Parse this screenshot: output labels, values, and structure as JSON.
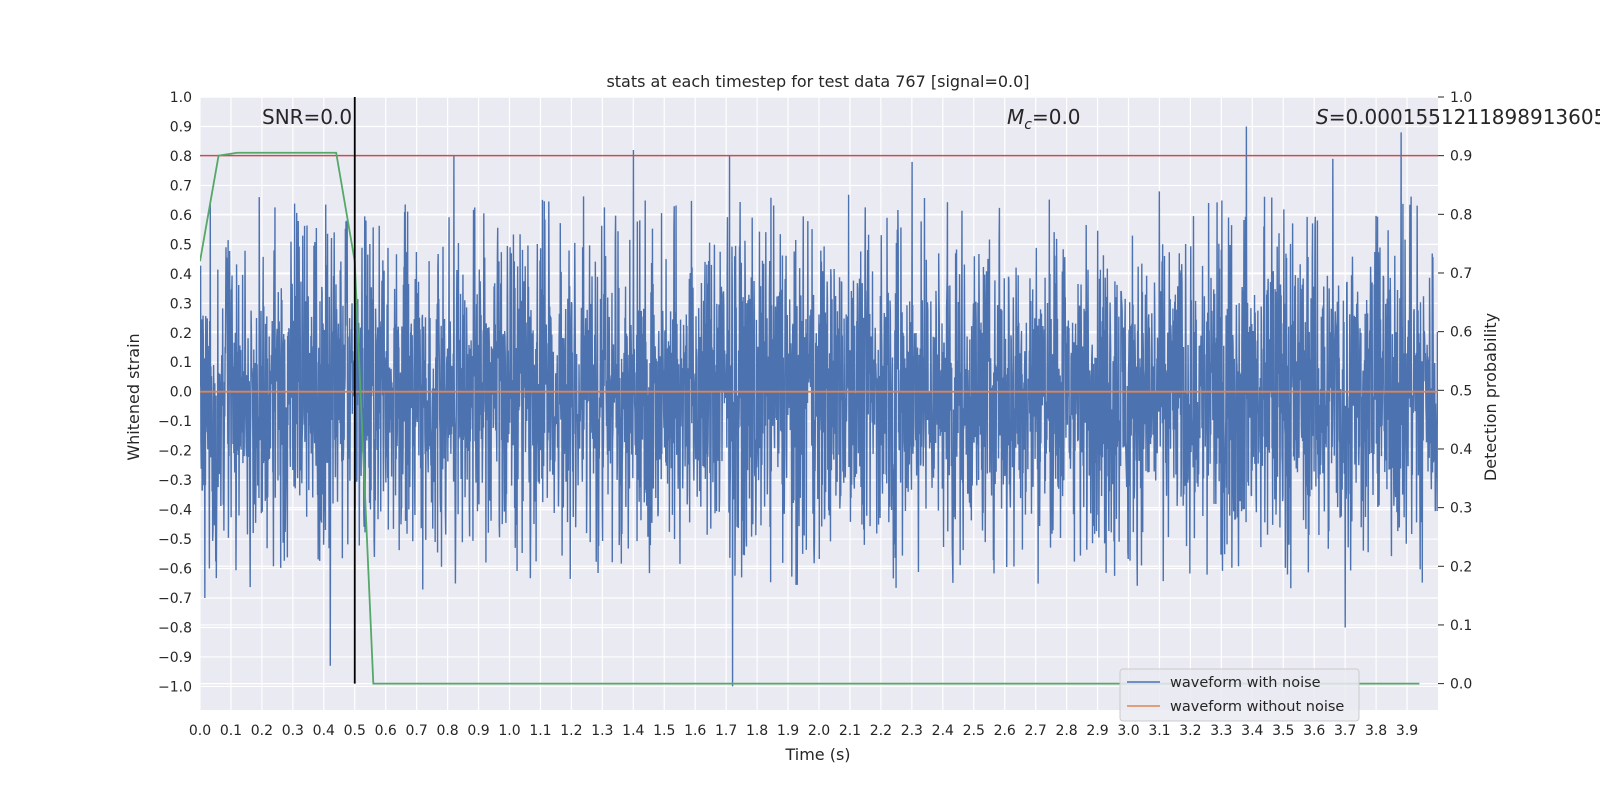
{
  "chart_data": {
    "type": "line",
    "title": "stats at each timestep for test data 767 [signal=0.0]",
    "xlabel": "Time (s)",
    "ylabel": "Whitened strain",
    "ylabel_right": "Detection probability",
    "xlim": [
      0.0,
      4.0
    ],
    "ylim": [
      -1.08,
      1.0
    ],
    "ylim_right": [
      -0.045,
      1.0
    ],
    "x_ticks": [
      0.0,
      0.1,
      0.2,
      0.3,
      0.4,
      0.5,
      0.6,
      0.7,
      0.8,
      0.9,
      1.0,
      1.1,
      1.2,
      1.3,
      1.4,
      1.5,
      1.6,
      1.7,
      1.8,
      1.9,
      2.0,
      2.1,
      2.2,
      2.3,
      2.4,
      2.5,
      2.6,
      2.7,
      2.8,
      2.9,
      3.0,
      3.1,
      3.2,
      3.3,
      3.4,
      3.5,
      3.6,
      3.7,
      3.8,
      3.9
    ],
    "y_ticks": [
      1.0,
      0.9,
      0.8,
      0.7,
      0.6,
      0.5,
      0.4,
      0.3,
      0.2,
      0.1,
      0.0,
      -0.1,
      -0.2,
      -0.3,
      -0.4,
      -0.5,
      -0.6,
      -0.7,
      -0.8,
      -0.9,
      -1.0
    ],
    "y_ticks_right": [
      1.0,
      0.9,
      0.8,
      0.7,
      0.6,
      0.5,
      0.4,
      0.3,
      0.2,
      0.1,
      0.0
    ],
    "annotations": {
      "snr": "SNR=0.0",
      "mc_symbol": "M",
      "mc_sub": "c",
      "mc_value": "=0.0",
      "s_symbol": "S",
      "s_value": "=0.0001551211898913605"
    },
    "series": [
      {
        "name": "waveform with noise",
        "color": "#4c72b0",
        "description": "whitened noisy strain, approx. uniform noise within [-0.7, 0.7] with spikes"
      },
      {
        "name": "waveform without noise",
        "color": "#dd8452",
        "y_constant": 0.0
      },
      {
        "color": "#55a868",
        "axis": "right",
        "x": [
          0.0,
          0.06,
          0.12,
          0.18,
          0.24,
          0.3,
          0.36,
          0.44,
          0.5,
          0.56,
          3.94
        ],
        "y": [
          0.72,
          0.9,
          0.905,
          0.905,
          0.905,
          0.905,
          0.905,
          0.905,
          0.72,
          0.0,
          0.0
        ]
      }
    ],
    "threshold": {
      "axis": "right",
      "value": 0.9,
      "color": "#c44e52"
    },
    "vline": {
      "x": 0.5,
      "color": "#000000"
    },
    "legend": "lower-right",
    "grid": true,
    "spike_points": [
      {
        "x": 0.015,
        "y": -0.7
      },
      {
        "x": 0.03,
        "y": -0.6
      },
      {
        "x": 0.42,
        "y": -0.93
      },
      {
        "x": 0.82,
        "y": 0.8
      },
      {
        "x": 1.4,
        "y": 0.82
      },
      {
        "x": 1.71,
        "y": 0.8
      },
      {
        "x": 1.72,
        "y": -1.0
      },
      {
        "x": 2.3,
        "y": 0.78
      },
      {
        "x": 3.38,
        "y": 0.9
      },
      {
        "x": 3.66,
        "y": 0.79
      },
      {
        "x": 3.7,
        "y": -0.8
      },
      {
        "x": 3.88,
        "y": 0.88
      }
    ]
  }
}
